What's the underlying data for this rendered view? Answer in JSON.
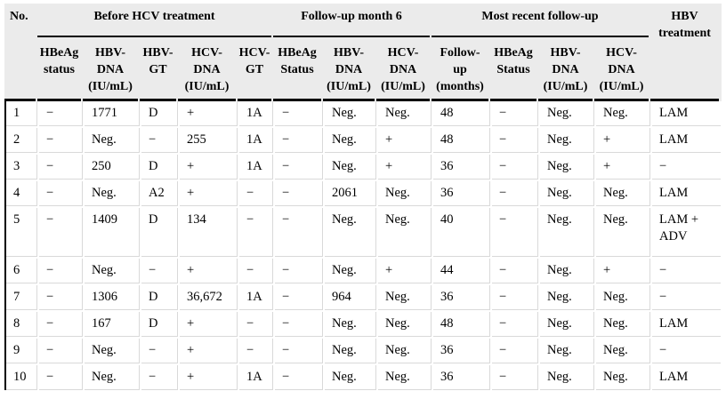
{
  "table": {
    "group_headers": {
      "no": "No.",
      "before": "Before HCV treatment",
      "month6": "Follow-up month 6",
      "recent": "Most recent follow-up",
      "hbv_treatment": "HBV\ntreatment"
    },
    "sub_headers": [
      "HBeAg\nstatus",
      "HBV-\nDNA\n(IU/mL)",
      "HBV-\nGT",
      "HCV-\nDNA\n(IU/mL)",
      "HCV-\nGT",
      "HBeAg\nStatus",
      "HBV-\nDNA\n(IU/mL)",
      "HCV-\nDNA\n(IU/mL)",
      "Follow-\nup\n(months)",
      "HBeAg\nStatus",
      "HBV-\nDNA\n(IU/mL)",
      "HCV-\nDNA\n(IU/mL)"
    ],
    "column_keys": [
      "no",
      "pre-hbeag-status",
      "pre-hbv-dna",
      "pre-hbv-gt",
      "pre-hcv-dna",
      "pre-hcv-gt",
      "m6-hbeag-status",
      "m6-hbv-dna",
      "m6-hcv-dna",
      "recent-followup-months",
      "recent-hbeag-status",
      "recent-hbv-dna",
      "recent-hcv-dna",
      "hbv-treatment"
    ],
    "rows": [
      [
        "1",
        "−",
        "1771",
        "D",
        "+",
        "1A",
        "−",
        "Neg.",
        "Neg.",
        "48",
        "−",
        "Neg.",
        "Neg.",
        "LAM"
      ],
      [
        "2",
        "−",
        "Neg.",
        "−",
        "255",
        "1A",
        "−",
        "Neg.",
        "+",
        "48",
        "−",
        "Neg.",
        "+",
        "LAM"
      ],
      [
        "3",
        "−",
        "250",
        "D",
        "+",
        "1A",
        "−",
        "Neg.",
        "+",
        "36",
        "−",
        "Neg.",
        "+",
        "−"
      ],
      [
        "4",
        "−",
        "Neg.",
        "A2",
        "+",
        "−",
        "−",
        "2061",
        "Neg.",
        "36",
        "−",
        "Neg.",
        "Neg.",
        "LAM"
      ],
      [
        "5",
        "−",
        "1409",
        "D",
        "134",
        "−",
        "−",
        "Neg.",
        "Neg.",
        "40",
        "−",
        "Neg.",
        "Neg.",
        "LAM + ADV"
      ],
      [
        "6",
        "−",
        "Neg.",
        "−",
        "+",
        "−",
        "−",
        "Neg.",
        "+",
        "44",
        "−",
        "Neg.",
        "+",
        "−"
      ],
      [
        "7",
        "−",
        "1306",
        "D",
        "36,672",
        "1A",
        "−",
        "964",
        "Neg.",
        "36",
        "−",
        "Neg.",
        "Neg.",
        "−"
      ],
      [
        "8",
        "−",
        "167",
        "D",
        "+",
        "−",
        "−",
        "Neg.",
        "Neg.",
        "48",
        "−",
        "Neg.",
        "Neg.",
        "LAM"
      ],
      [
        "9",
        "−",
        "Neg.",
        "−",
        "+",
        "−",
        "−",
        "Neg.",
        "Neg.",
        "36",
        "−",
        "Neg.",
        "Neg.",
        "−"
      ],
      [
        "10",
        "−",
        "Neg.",
        "−",
        "+",
        "1A",
        "−",
        "Neg.",
        "Neg.",
        "36",
        "−",
        "Neg.",
        "Neg.",
        "LAM"
      ]
    ],
    "colors": {
      "header_bg": "#ebebeb",
      "rule_black": "#000000",
      "grid_line": "#d9d9d9"
    }
  }
}
